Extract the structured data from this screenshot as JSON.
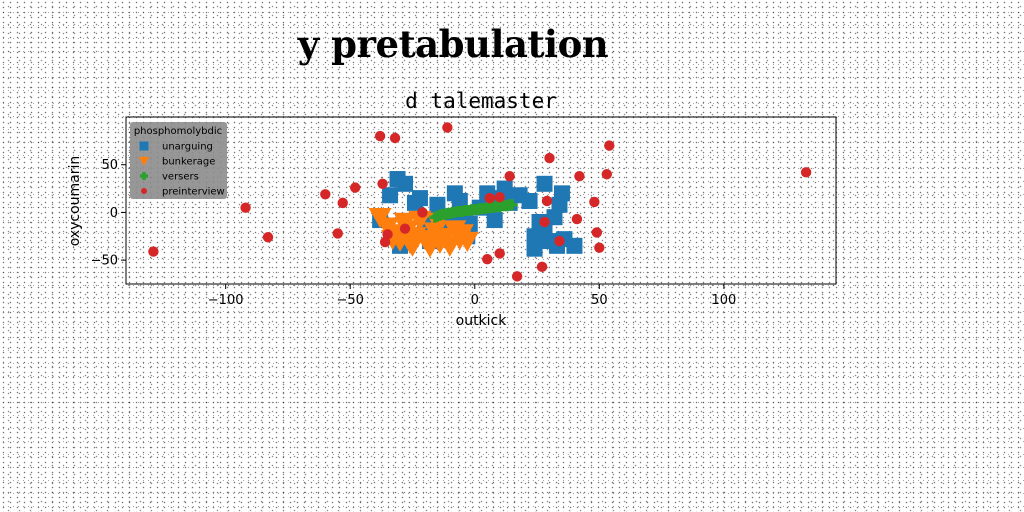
{
  "figure": {
    "title": "y pretabulation"
  },
  "chart_data": {
    "type": "scatter",
    "title": "d talemaster",
    "xlabel": "outkick",
    "ylabel": "oxycoumarin",
    "xlim": [
      -140,
      145
    ],
    "ylim": [
      -75,
      100
    ],
    "xticks": [
      -100,
      -50,
      0,
      50,
      100
    ],
    "yticks": [
      -50,
      0,
      50
    ],
    "grid": false,
    "legend": {
      "title": "phosphomolybdic",
      "placement": "top-left"
    },
    "series": [
      {
        "name": "unarguing",
        "marker": "square",
        "color": "#1f77b4",
        "points": [
          [
            -38,
            -8
          ],
          [
            -34,
            18
          ],
          [
            -31,
            35
          ],
          [
            -28,
            30
          ],
          [
            -24,
            10
          ],
          [
            -22,
            15
          ],
          [
            -20,
            -8
          ],
          [
            -18,
            -22
          ],
          [
            -16,
            -28
          ],
          [
            -15,
            8
          ],
          [
            -12,
            -5
          ],
          [
            -8,
            20
          ],
          [
            -6,
            12
          ],
          [
            -4,
            -3
          ],
          [
            -2,
            -12
          ],
          [
            2,
            5
          ],
          [
            5,
            20
          ],
          [
            8,
            -8
          ],
          [
            10,
            15
          ],
          [
            12,
            25
          ],
          [
            14,
            10
          ],
          [
            18,
            18
          ],
          [
            22,
            12
          ],
          [
            24,
            -25
          ],
          [
            26,
            -10
          ],
          [
            28,
            30
          ],
          [
            30,
            -30
          ],
          [
            32,
            -5
          ],
          [
            34,
            8
          ],
          [
            35,
            20
          ],
          [
            36,
            -28
          ],
          [
            40,
            -35
          ],
          [
            -30,
            -35
          ],
          [
            -26,
            -28
          ],
          [
            -18,
            -30
          ],
          [
            -14,
            -18
          ],
          [
            -10,
            -12
          ],
          [
            -3,
            -25
          ],
          [
            28,
            -20
          ],
          [
            24,
            -38
          ],
          [
            33,
            -35
          ]
        ]
      },
      {
        "name": "bunkerage",
        "marker": "triangle-down",
        "color": "#ff7f0e",
        "points": [
          [
            -38,
            -5
          ],
          [
            -35,
            -15
          ],
          [
            -32,
            -22
          ],
          [
            -30,
            -30
          ],
          [
            -28,
            -10
          ],
          [
            -27,
            -18
          ],
          [
            -25,
            -35
          ],
          [
            -24,
            -25
          ],
          [
            -22,
            -8
          ],
          [
            -20,
            -28
          ],
          [
            -18,
            -36
          ],
          [
            -16,
            -20
          ],
          [
            -15,
            -10
          ],
          [
            -14,
            -32
          ],
          [
            -12,
            -26
          ],
          [
            -10,
            -35
          ],
          [
            -8,
            -18
          ],
          [
            -6,
            -28
          ],
          [
            -5,
            -22
          ],
          [
            -3,
            -30
          ],
          [
            -33,
            -28
          ],
          [
            -26,
            -32
          ]
        ]
      },
      {
        "name": "versers",
        "marker": "plus",
        "color": "#2ca02c",
        "points": [
          [
            -16,
            -5
          ],
          [
            -15,
            -4
          ],
          [
            -14,
            -3
          ],
          [
            -13,
            -2
          ],
          [
            -12,
            -2
          ],
          [
            -11,
            -1
          ],
          [
            -10,
            -1
          ],
          [
            -9,
            0
          ],
          [
            -8,
            0
          ],
          [
            -7,
            1
          ],
          [
            -6,
            1
          ],
          [
            -5,
            1
          ],
          [
            -4,
            2
          ],
          [
            -3,
            2
          ],
          [
            -2,
            2
          ],
          [
            -1,
            3
          ],
          [
            0,
            3
          ],
          [
            1,
            3
          ],
          [
            2,
            4
          ],
          [
            3,
            4
          ],
          [
            4,
            4
          ],
          [
            5,
            5
          ],
          [
            6,
            5
          ],
          [
            7,
            5
          ],
          [
            8,
            6
          ],
          [
            9,
            6
          ],
          [
            10,
            6
          ],
          [
            11,
            7
          ],
          [
            12,
            7
          ],
          [
            13,
            7
          ],
          [
            14,
            8
          ],
          [
            15,
            8
          ]
        ]
      },
      {
        "name": "preinterview",
        "marker": "circle",
        "color": "#d62728",
        "points": [
          [
            -129,
            -41
          ],
          [
            -92,
            5
          ],
          [
            -83,
            -26
          ],
          [
            -60,
            19
          ],
          [
            -55,
            -22
          ],
          [
            -53,
            10
          ],
          [
            -48,
            26
          ],
          [
            -38,
            80
          ],
          [
            -32,
            78
          ],
          [
            -37,
            30
          ],
          [
            -36,
            -31
          ],
          [
            -35,
            -23
          ],
          [
            -28,
            -17
          ],
          [
            -21,
            0
          ],
          [
            -11,
            89
          ],
          [
            5,
            -49
          ],
          [
            6,
            15
          ],
          [
            10,
            16
          ],
          [
            14,
            38
          ],
          [
            17,
            -67
          ],
          [
            10,
            -43
          ],
          [
            27,
            -57
          ],
          [
            28,
            -10
          ],
          [
            29,
            12
          ],
          [
            30,
            57
          ],
          [
            34,
            -30
          ],
          [
            41,
            -7
          ],
          [
            42,
            38
          ],
          [
            48,
            11
          ],
          [
            49,
            -21
          ],
          [
            50,
            -37
          ],
          [
            53,
            40
          ],
          [
            54,
            70
          ],
          [
            133,
            42
          ]
        ]
      }
    ]
  }
}
